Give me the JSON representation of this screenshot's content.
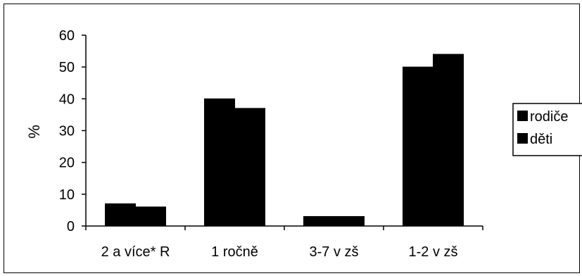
{
  "chart_data": {
    "type": "bar",
    "categories": [
      "2 a více* R",
      "1 ročně",
      "3-7 v zš",
      "1-2 v zš"
    ],
    "series": [
      {
        "name": "rodiče",
        "values": [
          7,
          40,
          3,
          50
        ]
      },
      {
        "name": "děti",
        "values": [
          6,
          37,
          3,
          54
        ]
      }
    ],
    "ylabel": "%",
    "ylim": [
      0,
      60
    ],
    "yticks": [
      0,
      10,
      20,
      30,
      40,
      50,
      60
    ],
    "grid": false,
    "legend_position": "right",
    "colors": {
      "bars": "#000000",
      "axis": "#000000",
      "background": "#ffffff"
    }
  }
}
